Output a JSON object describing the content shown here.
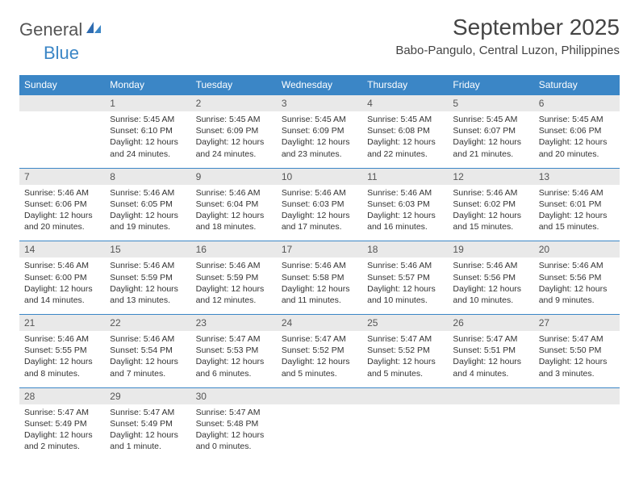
{
  "logo": {
    "text1": "General",
    "text2": "Blue"
  },
  "title": "September 2025",
  "location": "Babo-Pangulo, Central Luzon, Philippines",
  "colors": {
    "header_bg": "#3b86c6",
    "header_text": "#ffffff",
    "daynum_bg": "#e9e9e9",
    "border": "#3b86c6",
    "text": "#333333",
    "logo_gray": "#555555",
    "logo_blue": "#3b86c6",
    "page_bg": "#ffffff"
  },
  "weekdays": [
    "Sunday",
    "Monday",
    "Tuesday",
    "Wednesday",
    "Thursday",
    "Friday",
    "Saturday"
  ],
  "weeks": [
    [
      {
        "day": "",
        "sunrise": "",
        "sunset": "",
        "daylight": ""
      },
      {
        "day": "1",
        "sunrise": "Sunrise: 5:45 AM",
        "sunset": "Sunset: 6:10 PM",
        "daylight": "Daylight: 12 hours and 24 minutes."
      },
      {
        "day": "2",
        "sunrise": "Sunrise: 5:45 AM",
        "sunset": "Sunset: 6:09 PM",
        "daylight": "Daylight: 12 hours and 24 minutes."
      },
      {
        "day": "3",
        "sunrise": "Sunrise: 5:45 AM",
        "sunset": "Sunset: 6:09 PM",
        "daylight": "Daylight: 12 hours and 23 minutes."
      },
      {
        "day": "4",
        "sunrise": "Sunrise: 5:45 AM",
        "sunset": "Sunset: 6:08 PM",
        "daylight": "Daylight: 12 hours and 22 minutes."
      },
      {
        "day": "5",
        "sunrise": "Sunrise: 5:45 AM",
        "sunset": "Sunset: 6:07 PM",
        "daylight": "Daylight: 12 hours and 21 minutes."
      },
      {
        "day": "6",
        "sunrise": "Sunrise: 5:45 AM",
        "sunset": "Sunset: 6:06 PM",
        "daylight": "Daylight: 12 hours and 20 minutes."
      }
    ],
    [
      {
        "day": "7",
        "sunrise": "Sunrise: 5:46 AM",
        "sunset": "Sunset: 6:06 PM",
        "daylight": "Daylight: 12 hours and 20 minutes."
      },
      {
        "day": "8",
        "sunrise": "Sunrise: 5:46 AM",
        "sunset": "Sunset: 6:05 PM",
        "daylight": "Daylight: 12 hours and 19 minutes."
      },
      {
        "day": "9",
        "sunrise": "Sunrise: 5:46 AM",
        "sunset": "Sunset: 6:04 PM",
        "daylight": "Daylight: 12 hours and 18 minutes."
      },
      {
        "day": "10",
        "sunrise": "Sunrise: 5:46 AM",
        "sunset": "Sunset: 6:03 PM",
        "daylight": "Daylight: 12 hours and 17 minutes."
      },
      {
        "day": "11",
        "sunrise": "Sunrise: 5:46 AM",
        "sunset": "Sunset: 6:03 PM",
        "daylight": "Daylight: 12 hours and 16 minutes."
      },
      {
        "day": "12",
        "sunrise": "Sunrise: 5:46 AM",
        "sunset": "Sunset: 6:02 PM",
        "daylight": "Daylight: 12 hours and 15 minutes."
      },
      {
        "day": "13",
        "sunrise": "Sunrise: 5:46 AM",
        "sunset": "Sunset: 6:01 PM",
        "daylight": "Daylight: 12 hours and 15 minutes."
      }
    ],
    [
      {
        "day": "14",
        "sunrise": "Sunrise: 5:46 AM",
        "sunset": "Sunset: 6:00 PM",
        "daylight": "Daylight: 12 hours and 14 minutes."
      },
      {
        "day": "15",
        "sunrise": "Sunrise: 5:46 AM",
        "sunset": "Sunset: 5:59 PM",
        "daylight": "Daylight: 12 hours and 13 minutes."
      },
      {
        "day": "16",
        "sunrise": "Sunrise: 5:46 AM",
        "sunset": "Sunset: 5:59 PM",
        "daylight": "Daylight: 12 hours and 12 minutes."
      },
      {
        "day": "17",
        "sunrise": "Sunrise: 5:46 AM",
        "sunset": "Sunset: 5:58 PM",
        "daylight": "Daylight: 12 hours and 11 minutes."
      },
      {
        "day": "18",
        "sunrise": "Sunrise: 5:46 AM",
        "sunset": "Sunset: 5:57 PM",
        "daylight": "Daylight: 12 hours and 10 minutes."
      },
      {
        "day": "19",
        "sunrise": "Sunrise: 5:46 AM",
        "sunset": "Sunset: 5:56 PM",
        "daylight": "Daylight: 12 hours and 10 minutes."
      },
      {
        "day": "20",
        "sunrise": "Sunrise: 5:46 AM",
        "sunset": "Sunset: 5:56 PM",
        "daylight": "Daylight: 12 hours and 9 minutes."
      }
    ],
    [
      {
        "day": "21",
        "sunrise": "Sunrise: 5:46 AM",
        "sunset": "Sunset: 5:55 PM",
        "daylight": "Daylight: 12 hours and 8 minutes."
      },
      {
        "day": "22",
        "sunrise": "Sunrise: 5:46 AM",
        "sunset": "Sunset: 5:54 PM",
        "daylight": "Daylight: 12 hours and 7 minutes."
      },
      {
        "day": "23",
        "sunrise": "Sunrise: 5:47 AM",
        "sunset": "Sunset: 5:53 PM",
        "daylight": "Daylight: 12 hours and 6 minutes."
      },
      {
        "day": "24",
        "sunrise": "Sunrise: 5:47 AM",
        "sunset": "Sunset: 5:52 PM",
        "daylight": "Daylight: 12 hours and 5 minutes."
      },
      {
        "day": "25",
        "sunrise": "Sunrise: 5:47 AM",
        "sunset": "Sunset: 5:52 PM",
        "daylight": "Daylight: 12 hours and 5 minutes."
      },
      {
        "day": "26",
        "sunrise": "Sunrise: 5:47 AM",
        "sunset": "Sunset: 5:51 PM",
        "daylight": "Daylight: 12 hours and 4 minutes."
      },
      {
        "day": "27",
        "sunrise": "Sunrise: 5:47 AM",
        "sunset": "Sunset: 5:50 PM",
        "daylight": "Daylight: 12 hours and 3 minutes."
      }
    ],
    [
      {
        "day": "28",
        "sunrise": "Sunrise: 5:47 AM",
        "sunset": "Sunset: 5:49 PM",
        "daylight": "Daylight: 12 hours and 2 minutes."
      },
      {
        "day": "29",
        "sunrise": "Sunrise: 5:47 AM",
        "sunset": "Sunset: 5:49 PM",
        "daylight": "Daylight: 12 hours and 1 minute."
      },
      {
        "day": "30",
        "sunrise": "Sunrise: 5:47 AM",
        "sunset": "Sunset: 5:48 PM",
        "daylight": "Daylight: 12 hours and 0 minutes."
      },
      {
        "day": "",
        "sunrise": "",
        "sunset": "",
        "daylight": ""
      },
      {
        "day": "",
        "sunrise": "",
        "sunset": "",
        "daylight": ""
      },
      {
        "day": "",
        "sunrise": "",
        "sunset": "",
        "daylight": ""
      },
      {
        "day": "",
        "sunrise": "",
        "sunset": "",
        "daylight": ""
      }
    ]
  ]
}
